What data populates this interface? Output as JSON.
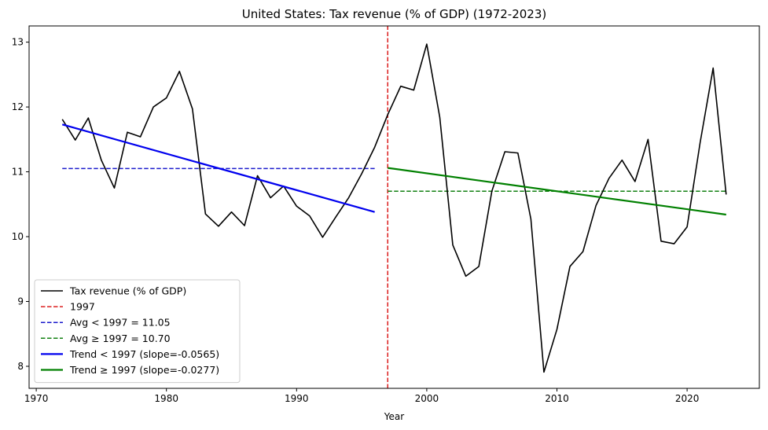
{
  "chart_data": {
    "type": "line",
    "title": "United States: Tax revenue (% of GDP) (1972-2023)",
    "xlabel": "Year",
    "ylabel": "",
    "xlim": [
      1969.45,
      2025.55
    ],
    "ylim": [
      7.66,
      13.25
    ],
    "xticks": [
      1970,
      1980,
      1990,
      2000,
      2010,
      2020
    ],
    "yticks": [
      8,
      9,
      10,
      11,
      12,
      13
    ],
    "split_year": 1997,
    "series": [
      {
        "name": "Tax revenue (% of GDP)",
        "color": "#000000",
        "style": "solid",
        "x": [
          1972,
          1973,
          1974,
          1975,
          1976,
          1977,
          1978,
          1979,
          1980,
          1981,
          1982,
          1983,
          1984,
          1985,
          1986,
          1987,
          1988,
          1989,
          1990,
          1991,
          1992,
          1993,
          1994,
          1995,
          1996,
          1997,
          1998,
          1999,
          2000,
          2001,
          2002,
          2003,
          2004,
          2005,
          2006,
          2007,
          2008,
          2009,
          2010,
          2011,
          2012,
          2013,
          2014,
          2015,
          2016,
          2017,
          2018,
          2019,
          2020,
          2021,
          2022,
          2023
        ],
        "values": [
          11.81,
          11.49,
          11.83,
          11.18,
          10.75,
          11.61,
          11.54,
          12.0,
          12.14,
          12.55,
          11.97,
          10.35,
          10.16,
          10.38,
          10.17,
          10.94,
          10.6,
          10.78,
          10.47,
          10.32,
          9.99,
          10.3,
          10.6,
          10.97,
          11.38,
          11.88,
          12.32,
          12.26,
          12.97,
          11.84,
          9.87,
          9.39,
          9.54,
          10.7,
          11.31,
          11.29,
          10.27,
          7.91,
          8.57,
          9.54,
          9.77,
          10.48,
          10.9,
          11.18,
          10.85,
          11.5,
          9.93,
          9.89,
          10.15,
          11.45,
          12.6,
          10.65
        ]
      },
      {
        "name": "1997",
        "color": "#dc1e1e",
        "style": "dashed",
        "x": [
          1997,
          1997
        ],
        "values": [
          7.66,
          13.25
        ]
      },
      {
        "name": "Avg < 1997 = 11.05",
        "color": "#1a1acc",
        "style": "dashed",
        "x": [
          1972,
          1996
        ],
        "values": [
          11.05,
          11.05
        ]
      },
      {
        "name": "Avg ≥ 1997 = 10.70",
        "color": "#128012",
        "style": "dashed",
        "x": [
          1997,
          2023
        ],
        "values": [
          10.7,
          10.7
        ]
      },
      {
        "name": "Trend < 1997 (slope=-0.0565)",
        "color": "#0000ee",
        "style": "solid-thick",
        "x": [
          1972,
          1996
        ],
        "values": [
          11.73,
          10.38
        ]
      },
      {
        "name": "Trend ≥ 1997 (slope=-0.0277)",
        "color": "#008000",
        "style": "solid-thick",
        "x": [
          1997,
          2023
        ],
        "values": [
          11.06,
          10.34
        ]
      }
    ],
    "legend_position": "lower-left",
    "grid": false
  }
}
